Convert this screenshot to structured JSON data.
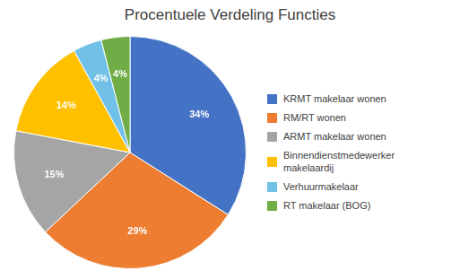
{
  "chart_data": {
    "type": "pie",
    "title": "Procentuele Verdeling Functies",
    "categories": [
      "KRMT makelaar wonen",
      "RM/RT wonen",
      "ARMT makelaar wonen",
      "Binnendienstmedewerker\nmakelaardij",
      "Verhuurmakelaar",
      "RT makelaar (BOG)"
    ],
    "values": [
      34,
      29,
      15,
      14,
      4,
      4
    ],
    "value_labels": [
      "34%",
      "29%",
      "15%",
      "14%",
      "4%",
      "4%"
    ],
    "colors": [
      "#4472C4",
      "#ED7D31",
      "#A5A5A5",
      "#FFC000",
      "#70C0E8",
      "#70AD47"
    ],
    "data_labels": true,
    "legend": "right"
  }
}
